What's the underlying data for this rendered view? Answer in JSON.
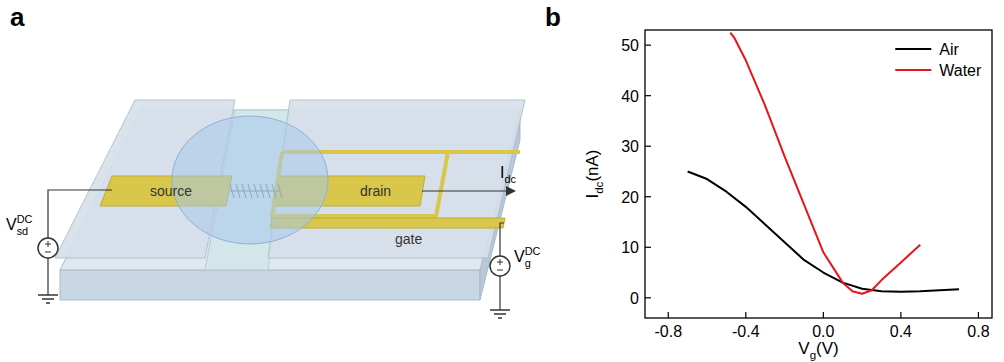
{
  "panels": [
    "a",
    "b"
  ],
  "diagram": {
    "source": "source",
    "drain": "drain",
    "gate": "gate",
    "v_sd": {
      "base": "V",
      "sub": "sd",
      "sup": "DC"
    },
    "v_g": {
      "base": "V",
      "sub": "g",
      "sup": "DC"
    },
    "i_dc": {
      "base": "I",
      "sub": "dc"
    }
  },
  "chart_data": {
    "type": "line",
    "x_label": {
      "base": "V",
      "sub": "g",
      "after": "(V)"
    },
    "y_label": {
      "base": "I",
      "sub": "dc",
      "after": "(nA)"
    },
    "xlim": [
      -0.92,
      0.87
    ],
    "ylim": [
      -4,
      53
    ],
    "xticks": [
      -0.8,
      -0.4,
      {
        "value": 0,
        "label": "0.0"
      },
      0.4,
      0.8
    ],
    "yticks": [
      0,
      10,
      20,
      30,
      40,
      50
    ],
    "grid": false,
    "legend": "upper right",
    "series": [
      {
        "name": "Air",
        "color": "#000000",
        "x": [
          -0.7,
          -0.6,
          -0.5,
          -0.4,
          -0.3,
          -0.2,
          -0.1,
          0,
          0.1,
          0.2,
          0.3,
          0.4,
          0.5,
          0.6,
          0.7
        ],
        "values": [
          25,
          23.5,
          21,
          18,
          14.5,
          11,
          7.5,
          5,
          3,
          1.8,
          1.3,
          1.2,
          1.3,
          1.5,
          1.7
        ]
      },
      {
        "name": "Water",
        "color": "#e8141b",
        "x": [
          -0.48,
          -0.46,
          -0.4,
          -0.3,
          -0.2,
          -0.1,
          0,
          0.1,
          0.15,
          0.2,
          0.25,
          0.3,
          0.4,
          0.5
        ],
        "values": [
          52.5,
          51.5,
          47,
          38,
          28,
          18.5,
          9,
          3,
          1.3,
          0.8,
          1.5,
          3.5,
          7,
          10.5
        ]
      }
    ]
  }
}
